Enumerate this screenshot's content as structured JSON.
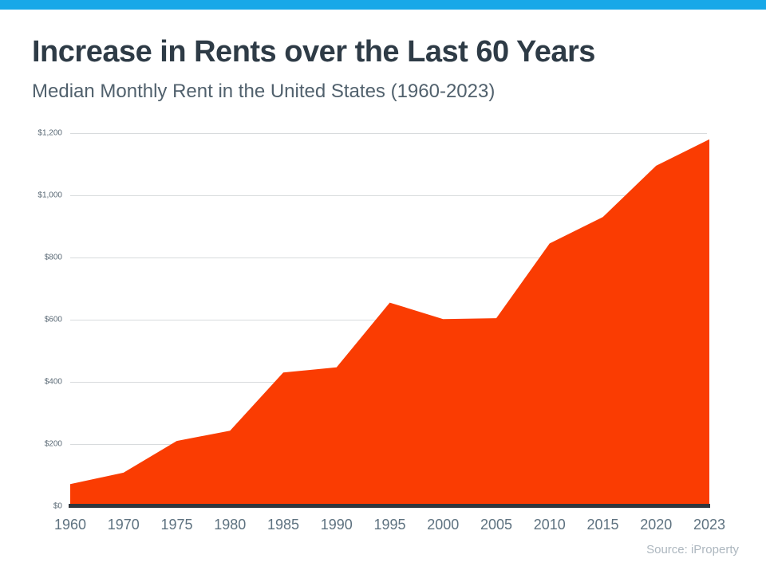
{
  "page": {
    "accent_bar_color": "#18a8e8"
  },
  "header": {
    "title": "Increase in Rents over the Last 60 Years",
    "subtitle": "Median Monthly Rent in the United States (1960-2023)"
  },
  "footer": {
    "source": "Source: iProperty"
  },
  "chart_data": {
    "type": "area",
    "title": "Increase in Rents over the Last 60 Years",
    "subtitle": "Median Monthly Rent in the United States (1960-2023)",
    "categories": [
      "1960",
      "1970",
      "1975",
      "1980",
      "1985",
      "1990",
      "1995",
      "2000",
      "2005",
      "2010",
      "2015",
      "2020",
      "2023"
    ],
    "values": [
      71,
      108,
      210,
      243,
      430,
      447,
      655,
      602,
      605,
      845,
      930,
      1095,
      1180
    ],
    "xlabel": "",
    "ylabel": "",
    "ylim": [
      0,
      1200
    ],
    "ytick_step": 200,
    "ytick_labels": [
      "$0",
      "$200",
      "$400",
      "$600",
      "$800",
      "$1,000",
      "$1,200"
    ],
    "grid": true,
    "legend": false,
    "area_color": "#fa3c02",
    "gridline_color": "#d8dbdd",
    "axis_line_color": "#30363d"
  }
}
